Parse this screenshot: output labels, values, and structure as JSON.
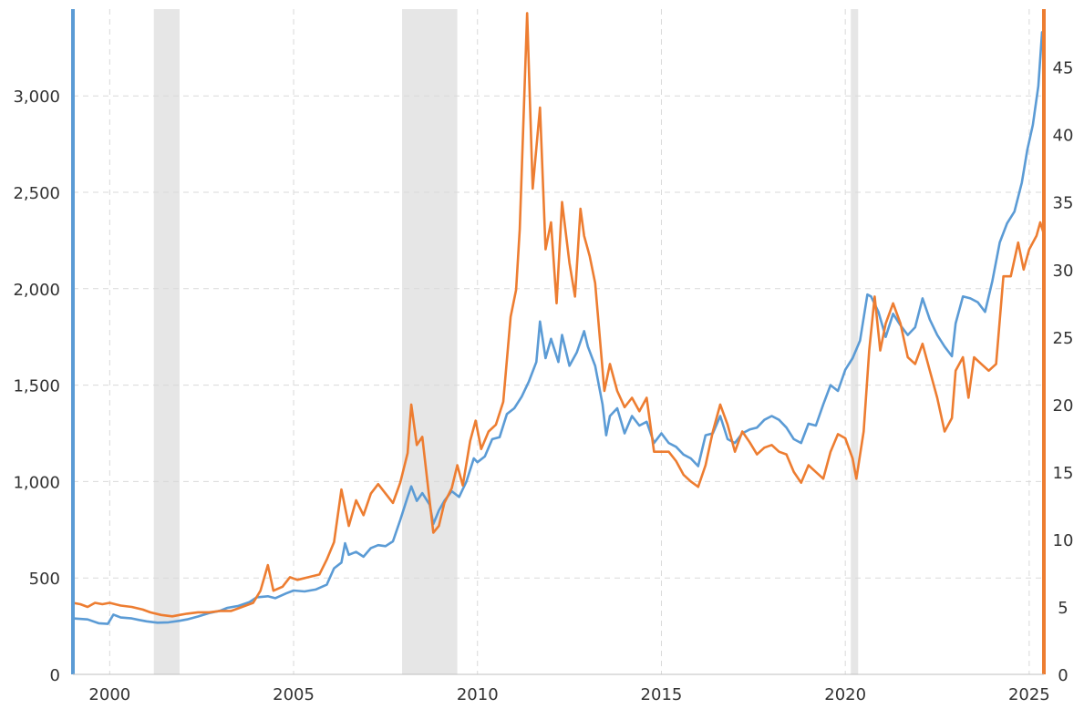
{
  "chart_data": {
    "type": "line",
    "title": "",
    "xlabel": "",
    "ylabel": "",
    "xlim": [
      1999.0,
      2025.4
    ],
    "ylim_left": [
      0,
      3450
    ],
    "ylim_right": [
      0,
      49.3
    ],
    "grid": true,
    "colors": {
      "left": "#5b9bd5",
      "right": "#ed7d31",
      "recession": "#e6e6e6"
    },
    "x_ticks": [
      {
        "value": 2000,
        "label": "2000"
      },
      {
        "value": 2005,
        "label": "2005"
      },
      {
        "value": 2010,
        "label": "2010"
      },
      {
        "value": 2015,
        "label": "2015"
      },
      {
        "value": 2020,
        "label": "2020"
      },
      {
        "value": 2025,
        "label": "2025"
      }
    ],
    "y_ticks_left": [
      {
        "value": 0,
        "label": "0"
      },
      {
        "value": 500,
        "label": "500"
      },
      {
        "value": 1000,
        "label": "1,000"
      },
      {
        "value": 1500,
        "label": "1,500"
      },
      {
        "value": 2000,
        "label": "2,000"
      },
      {
        "value": 2500,
        "label": "2,500"
      },
      {
        "value": 3000,
        "label": "3,000"
      }
    ],
    "y_ticks_right": [
      {
        "value": 0,
        "label": "0"
      },
      {
        "value": 5,
        "label": "5"
      },
      {
        "value": 10,
        "label": "10"
      },
      {
        "value": 15,
        "label": "15"
      },
      {
        "value": 20,
        "label": "20"
      },
      {
        "value": 25,
        "label": "25"
      },
      {
        "value": 30,
        "label": "30"
      },
      {
        "value": 35,
        "label": "35"
      },
      {
        "value": 40,
        "label": "40"
      },
      {
        "value": 45,
        "label": "45"
      }
    ],
    "shaded_periods": [
      [
        2001.2,
        2001.9
      ],
      [
        2007.95,
        2009.45
      ],
      [
        2020.15,
        2020.35
      ]
    ],
    "series": [
      {
        "axis": "left",
        "points": [
          [
            1999.0,
            290
          ],
          [
            1999.4,
            285
          ],
          [
            1999.7,
            265
          ],
          [
            1999.95,
            262
          ],
          [
            2000.1,
            310
          ],
          [
            2000.3,
            295
          ],
          [
            2000.6,
            290
          ],
          [
            2000.8,
            282
          ],
          [
            2001.0,
            275
          ],
          [
            2001.3,
            268
          ],
          [
            2001.6,
            270
          ],
          [
            2001.9,
            278
          ],
          [
            2002.1,
            285
          ],
          [
            2002.4,
            300
          ],
          [
            2002.7,
            318
          ],
          [
            2003.0,
            330
          ],
          [
            2003.2,
            345
          ],
          [
            2003.5,
            355
          ],
          [
            2003.8,
            375
          ],
          [
            2004.0,
            400
          ],
          [
            2004.3,
            405
          ],
          [
            2004.5,
            395
          ],
          [
            2004.8,
            420
          ],
          [
            2005.0,
            435
          ],
          [
            2005.3,
            430
          ],
          [
            2005.6,
            440
          ],
          [
            2005.9,
            465
          ],
          [
            2006.1,
            550
          ],
          [
            2006.3,
            580
          ],
          [
            2006.4,
            680
          ],
          [
            2006.5,
            620
          ],
          [
            2006.7,
            635
          ],
          [
            2006.9,
            610
          ],
          [
            2007.1,
            655
          ],
          [
            2007.3,
            670
          ],
          [
            2007.5,
            665
          ],
          [
            2007.7,
            690
          ],
          [
            2007.9,
            800
          ],
          [
            2008.1,
            920
          ],
          [
            2008.2,
            975
          ],
          [
            2008.35,
            900
          ],
          [
            2008.5,
            940
          ],
          [
            2008.7,
            880
          ],
          [
            2008.8,
            780
          ],
          [
            2008.95,
            850
          ],
          [
            2009.1,
            900
          ],
          [
            2009.3,
            950
          ],
          [
            2009.5,
            920
          ],
          [
            2009.7,
            1000
          ],
          [
            2009.9,
            1120
          ],
          [
            2010.0,
            1100
          ],
          [
            2010.2,
            1130
          ],
          [
            2010.4,
            1220
          ],
          [
            2010.6,
            1230
          ],
          [
            2010.8,
            1350
          ],
          [
            2011.0,
            1380
          ],
          [
            2011.2,
            1440
          ],
          [
            2011.4,
            1520
          ],
          [
            2011.6,
            1620
          ],
          [
            2011.7,
            1830
          ],
          [
            2011.85,
            1640
          ],
          [
            2012.0,
            1740
          ],
          [
            2012.2,
            1620
          ],
          [
            2012.3,
            1760
          ],
          [
            2012.5,
            1600
          ],
          [
            2012.7,
            1670
          ],
          [
            2012.9,
            1780
          ],
          [
            2013.0,
            1700
          ],
          [
            2013.2,
            1600
          ],
          [
            2013.4,
            1400
          ],
          [
            2013.5,
            1240
          ],
          [
            2013.6,
            1340
          ],
          [
            2013.8,
            1380
          ],
          [
            2014.0,
            1250
          ],
          [
            2014.2,
            1340
          ],
          [
            2014.4,
            1290
          ],
          [
            2014.6,
            1310
          ],
          [
            2014.8,
            1200
          ],
          [
            2015.0,
            1250
          ],
          [
            2015.2,
            1200
          ],
          [
            2015.4,
            1180
          ],
          [
            2015.6,
            1140
          ],
          [
            2015.8,
            1120
          ],
          [
            2016.0,
            1080
          ],
          [
            2016.2,
            1240
          ],
          [
            2016.4,
            1250
          ],
          [
            2016.6,
            1340
          ],
          [
            2016.8,
            1220
          ],
          [
            2017.0,
            1200
          ],
          [
            2017.2,
            1250
          ],
          [
            2017.4,
            1270
          ],
          [
            2017.6,
            1280
          ],
          [
            2017.8,
            1320
          ],
          [
            2018.0,
            1340
          ],
          [
            2018.2,
            1320
          ],
          [
            2018.4,
            1280
          ],
          [
            2018.6,
            1220
          ],
          [
            2018.8,
            1200
          ],
          [
            2019.0,
            1300
          ],
          [
            2019.2,
            1290
          ],
          [
            2019.4,
            1400
          ],
          [
            2019.6,
            1500
          ],
          [
            2019.8,
            1470
          ],
          [
            2020.0,
            1580
          ],
          [
            2020.2,
            1640
          ],
          [
            2020.4,
            1730
          ],
          [
            2020.6,
            1970
          ],
          [
            2020.7,
            1960
          ],
          [
            2020.9,
            1880
          ],
          [
            2021.1,
            1750
          ],
          [
            2021.3,
            1870
          ],
          [
            2021.5,
            1810
          ],
          [
            2021.7,
            1760
          ],
          [
            2021.9,
            1800
          ],
          [
            2022.1,
            1950
          ],
          [
            2022.3,
            1840
          ],
          [
            2022.5,
            1760
          ],
          [
            2022.7,
            1700
          ],
          [
            2022.9,
            1650
          ],
          [
            2023.0,
            1820
          ],
          [
            2023.2,
            1960
          ],
          [
            2023.4,
            1950
          ],
          [
            2023.6,
            1930
          ],
          [
            2023.8,
            1880
          ],
          [
            2024.0,
            2040
          ],
          [
            2024.2,
            2240
          ],
          [
            2024.4,
            2340
          ],
          [
            2024.6,
            2400
          ],
          [
            2024.8,
            2550
          ],
          [
            2024.95,
            2720
          ],
          [
            2025.1,
            2850
          ],
          [
            2025.25,
            3050
          ],
          [
            2025.35,
            3330
          ]
        ]
      },
      {
        "axis": "right",
        "points": [
          [
            1999.0,
            5.3
          ],
          [
            1999.2,
            5.2
          ],
          [
            1999.4,
            5.0
          ],
          [
            1999.6,
            5.3
          ],
          [
            1999.8,
            5.2
          ],
          [
            2000.0,
            5.3
          ],
          [
            2000.3,
            5.1
          ],
          [
            2000.6,
            5.0
          ],
          [
            2000.9,
            4.8
          ],
          [
            2001.1,
            4.6
          ],
          [
            2001.4,
            4.4
          ],
          [
            2001.7,
            4.3
          ],
          [
            2001.9,
            4.4
          ],
          [
            2002.1,
            4.5
          ],
          [
            2002.4,
            4.6
          ],
          [
            2002.7,
            4.6
          ],
          [
            2003.0,
            4.7
          ],
          [
            2003.3,
            4.7
          ],
          [
            2003.6,
            5.0
          ],
          [
            2003.9,
            5.3
          ],
          [
            2004.1,
            6.2
          ],
          [
            2004.3,
            8.1
          ],
          [
            2004.45,
            6.2
          ],
          [
            2004.7,
            6.5
          ],
          [
            2004.9,
            7.2
          ],
          [
            2005.1,
            7.0
          ],
          [
            2005.4,
            7.2
          ],
          [
            2005.7,
            7.4
          ],
          [
            2005.9,
            8.5
          ],
          [
            2006.1,
            9.8
          ],
          [
            2006.3,
            13.7
          ],
          [
            2006.5,
            11.0
          ],
          [
            2006.7,
            12.9
          ],
          [
            2006.9,
            11.8
          ],
          [
            2007.1,
            13.4
          ],
          [
            2007.3,
            14.1
          ],
          [
            2007.5,
            13.4
          ],
          [
            2007.7,
            12.7
          ],
          [
            2007.9,
            14.2
          ],
          [
            2008.1,
            16.4
          ],
          [
            2008.2,
            20.0
          ],
          [
            2008.35,
            17.0
          ],
          [
            2008.5,
            17.6
          ],
          [
            2008.65,
            14.0
          ],
          [
            2008.8,
            10.5
          ],
          [
            2008.95,
            11.0
          ],
          [
            2009.1,
            12.7
          ],
          [
            2009.3,
            13.8
          ],
          [
            2009.45,
            15.5
          ],
          [
            2009.6,
            14.0
          ],
          [
            2009.8,
            17.3
          ],
          [
            2009.95,
            18.8
          ],
          [
            2010.1,
            16.7
          ],
          [
            2010.3,
            18.0
          ],
          [
            2010.5,
            18.5
          ],
          [
            2010.7,
            20.2
          ],
          [
            2010.9,
            26.5
          ],
          [
            2011.05,
            28.5
          ],
          [
            2011.15,
            33.0
          ],
          [
            2011.35,
            49.0
          ],
          [
            2011.5,
            36.0
          ],
          [
            2011.7,
            42.0
          ],
          [
            2011.85,
            31.5
          ],
          [
            2012.0,
            33.5
          ],
          [
            2012.15,
            27.5
          ],
          [
            2012.3,
            35.0
          ],
          [
            2012.5,
            30.5
          ],
          [
            2012.65,
            28.0
          ],
          [
            2012.8,
            34.5
          ],
          [
            2012.9,
            32.5
          ],
          [
            2013.05,
            31.0
          ],
          [
            2013.2,
            29.0
          ],
          [
            2013.45,
            21.0
          ],
          [
            2013.6,
            23.0
          ],
          [
            2013.8,
            21.0
          ],
          [
            2014.0,
            19.8
          ],
          [
            2014.2,
            20.5
          ],
          [
            2014.4,
            19.5
          ],
          [
            2014.6,
            20.5
          ],
          [
            2014.8,
            16.5
          ],
          [
            2015.0,
            16.5
          ],
          [
            2015.2,
            16.5
          ],
          [
            2015.4,
            15.8
          ],
          [
            2015.6,
            14.8
          ],
          [
            2015.8,
            14.3
          ],
          [
            2016.0,
            13.9
          ],
          [
            2016.2,
            15.5
          ],
          [
            2016.4,
            18.0
          ],
          [
            2016.6,
            20.0
          ],
          [
            2016.8,
            18.5
          ],
          [
            2017.0,
            16.5
          ],
          [
            2017.2,
            18.0
          ],
          [
            2017.4,
            17.2
          ],
          [
            2017.6,
            16.3
          ],
          [
            2017.8,
            16.8
          ],
          [
            2018.0,
            17.0
          ],
          [
            2018.2,
            16.5
          ],
          [
            2018.4,
            16.3
          ],
          [
            2018.6,
            15.0
          ],
          [
            2018.8,
            14.2
          ],
          [
            2019.0,
            15.5
          ],
          [
            2019.2,
            15.0
          ],
          [
            2019.4,
            14.5
          ],
          [
            2019.6,
            16.5
          ],
          [
            2019.8,
            17.8
          ],
          [
            2020.0,
            17.5
          ],
          [
            2020.2,
            16.0
          ],
          [
            2020.3,
            14.5
          ],
          [
            2020.5,
            18.0
          ],
          [
            2020.65,
            24.0
          ],
          [
            2020.8,
            28.0
          ],
          [
            2020.95,
            24.0
          ],
          [
            2021.1,
            26.0
          ],
          [
            2021.3,
            27.5
          ],
          [
            2021.5,
            26.0
          ],
          [
            2021.7,
            23.5
          ],
          [
            2021.9,
            23.0
          ],
          [
            2022.1,
            24.5
          ],
          [
            2022.3,
            22.5
          ],
          [
            2022.5,
            20.5
          ],
          [
            2022.7,
            18.0
          ],
          [
            2022.9,
            19.0
          ],
          [
            2023.0,
            22.5
          ],
          [
            2023.2,
            23.5
          ],
          [
            2023.35,
            20.5
          ],
          [
            2023.5,
            23.5
          ],
          [
            2023.7,
            23.0
          ],
          [
            2023.9,
            22.5
          ],
          [
            2024.1,
            23.0
          ],
          [
            2024.3,
            29.5
          ],
          [
            2024.5,
            29.5
          ],
          [
            2024.7,
            32.0
          ],
          [
            2024.85,
            30.0
          ],
          [
            2025.0,
            31.5
          ],
          [
            2025.2,
            32.5
          ],
          [
            2025.3,
            33.5
          ],
          [
            2025.38,
            32.8
          ]
        ]
      }
    ]
  }
}
